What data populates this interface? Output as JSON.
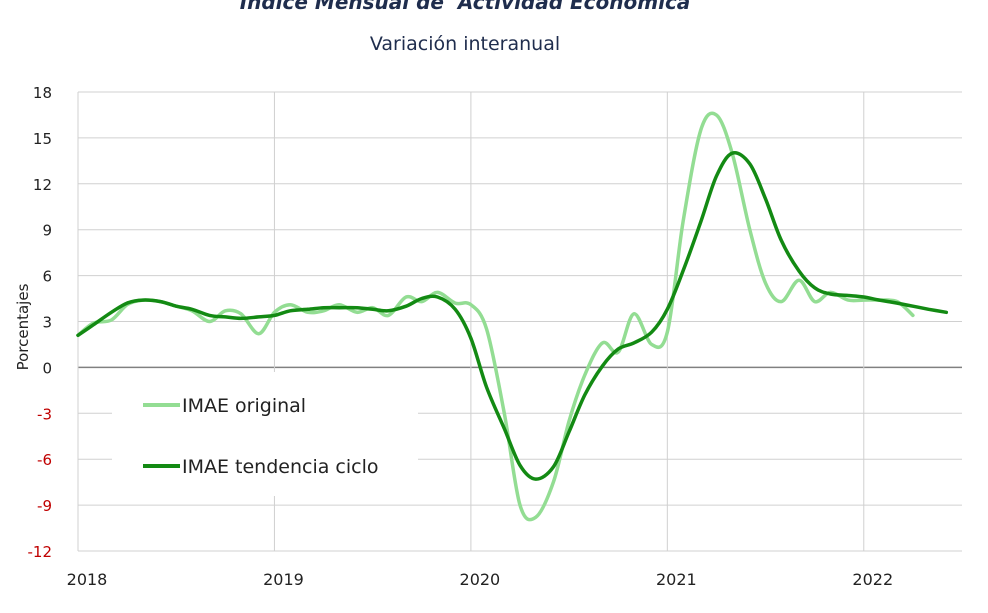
{
  "chart_data": {
    "type": "line",
    "title": "Índice Mensual de  Actividad Económica",
    "subtitle": "Variación interanual",
    "ylabel": "Porcentajes",
    "xlabel": "",
    "ylim": [
      -12,
      18
    ],
    "yticks": [
      18,
      15,
      12,
      9,
      6,
      3,
      0,
      -3,
      -6,
      -9,
      -12
    ],
    "xticks": [
      "2018",
      "2019",
      "2020",
      "2021",
      "2022"
    ],
    "xlim": [
      2018.0,
      2022.5
    ],
    "grid": true,
    "legend_position": "center-left",
    "colors": {
      "original": "#93dd93",
      "tendencia": "#138a13",
      "grid": "#d0d0d0",
      "zero_line": "#808080",
      "negative_tick": "#c00000"
    },
    "series": [
      {
        "name": "IMAE original",
        "points": [
          [
            2018.0,
            2.1
          ],
          [
            2018.08,
            2.9
          ],
          [
            2018.17,
            3.1
          ],
          [
            2018.25,
            4.1
          ],
          [
            2018.33,
            4.4
          ],
          [
            2018.42,
            4.3
          ],
          [
            2018.5,
            4.0
          ],
          [
            2018.58,
            3.7
          ],
          [
            2018.67,
            3.0
          ],
          [
            2018.75,
            3.7
          ],
          [
            2018.83,
            3.5
          ],
          [
            2018.92,
            2.2
          ],
          [
            2019.0,
            3.6
          ],
          [
            2019.08,
            4.1
          ],
          [
            2019.17,
            3.6
          ],
          [
            2019.25,
            3.7
          ],
          [
            2019.33,
            4.1
          ],
          [
            2019.42,
            3.6
          ],
          [
            2019.5,
            3.9
          ],
          [
            2019.58,
            3.4
          ],
          [
            2019.67,
            4.6
          ],
          [
            2019.75,
            4.3
          ],
          [
            2019.83,
            4.9
          ],
          [
            2019.92,
            4.2
          ],
          [
            2020.0,
            4.1
          ],
          [
            2020.08,
            2.5
          ],
          [
            2020.17,
            -3.0
          ],
          [
            2020.25,
            -9.0
          ],
          [
            2020.33,
            -9.8
          ],
          [
            2020.42,
            -7.5
          ],
          [
            2020.5,
            -3.5
          ],
          [
            2020.58,
            -0.5
          ],
          [
            2020.67,
            1.6
          ],
          [
            2020.75,
            1.0
          ],
          [
            2020.83,
            3.5
          ],
          [
            2020.92,
            1.5
          ],
          [
            2021.0,
            2.3
          ],
          [
            2021.08,
            9.5
          ],
          [
            2021.17,
            15.5
          ],
          [
            2021.25,
            16.5
          ],
          [
            2021.33,
            14.0
          ],
          [
            2021.42,
            9.0
          ],
          [
            2021.5,
            5.5
          ],
          [
            2021.58,
            4.3
          ],
          [
            2021.67,
            5.7
          ],
          [
            2021.75,
            4.3
          ],
          [
            2021.83,
            4.9
          ],
          [
            2021.92,
            4.4
          ],
          [
            2022.0,
            4.4
          ],
          [
            2022.08,
            4.4
          ],
          [
            2022.17,
            4.3
          ],
          [
            2022.25,
            3.4
          ]
        ]
      },
      {
        "name": "IMAE tendencia ciclo",
        "points": [
          [
            2018.0,
            2.1
          ],
          [
            2018.08,
            2.8
          ],
          [
            2018.17,
            3.6
          ],
          [
            2018.25,
            4.2
          ],
          [
            2018.33,
            4.4
          ],
          [
            2018.42,
            4.3
          ],
          [
            2018.5,
            4.0
          ],
          [
            2018.58,
            3.8
          ],
          [
            2018.67,
            3.4
          ],
          [
            2018.75,
            3.3
          ],
          [
            2018.83,
            3.2
          ],
          [
            2018.92,
            3.3
          ],
          [
            2019.0,
            3.4
          ],
          [
            2019.08,
            3.7
          ],
          [
            2019.17,
            3.8
          ],
          [
            2019.25,
            3.9
          ],
          [
            2019.33,
            3.9
          ],
          [
            2019.42,
            3.9
          ],
          [
            2019.5,
            3.8
          ],
          [
            2019.58,
            3.7
          ],
          [
            2019.67,
            4.0
          ],
          [
            2019.75,
            4.5
          ],
          [
            2019.83,
            4.6
          ],
          [
            2019.92,
            3.8
          ],
          [
            2020.0,
            1.9
          ],
          [
            2020.08,
            -1.3
          ],
          [
            2020.17,
            -4.0
          ],
          [
            2020.25,
            -6.4
          ],
          [
            2020.33,
            -7.3
          ],
          [
            2020.42,
            -6.5
          ],
          [
            2020.5,
            -4.2
          ],
          [
            2020.58,
            -1.8
          ],
          [
            2020.67,
            0.1
          ],
          [
            2020.75,
            1.2
          ],
          [
            2020.83,
            1.6
          ],
          [
            2020.92,
            2.3
          ],
          [
            2021.0,
            3.8
          ],
          [
            2021.08,
            6.3
          ],
          [
            2021.17,
            9.5
          ],
          [
            2021.25,
            12.5
          ],
          [
            2021.33,
            14.0
          ],
          [
            2021.42,
            13.3
          ],
          [
            2021.5,
            11.0
          ],
          [
            2021.58,
            8.3
          ],
          [
            2021.67,
            6.3
          ],
          [
            2021.75,
            5.2
          ],
          [
            2021.83,
            4.8
          ],
          [
            2021.92,
            4.7
          ],
          [
            2022.0,
            4.6
          ],
          [
            2022.08,
            4.4
          ],
          [
            2022.17,
            4.2
          ],
          [
            2022.25,
            4.0
          ],
          [
            2022.33,
            3.8
          ],
          [
            2022.42,
            3.6
          ]
        ]
      }
    ]
  }
}
